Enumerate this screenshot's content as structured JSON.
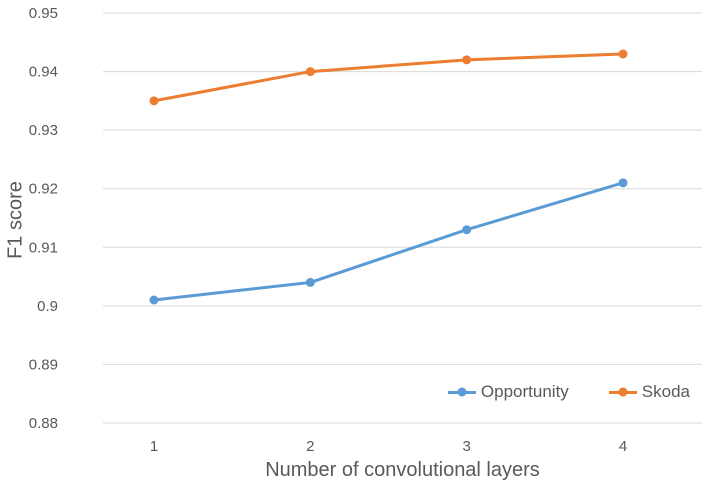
{
  "chart_data": {
    "type": "line",
    "title": "",
    "xlabel": "Number of convolutional layers",
    "ylabel": "F1 score",
    "x": [
      1,
      2,
      3,
      4
    ],
    "xtick_labels": [
      "1",
      "2",
      "3",
      "4"
    ],
    "yticks": [
      0.95,
      0.94,
      0.93,
      0.92,
      0.91,
      0.9,
      0.89,
      0.88
    ],
    "ytick_labels": [
      "0.95",
      "0.94",
      "0.93",
      "0.92",
      "0.91",
      "0.9",
      "0.89",
      "0.88"
    ],
    "ylim": [
      0.88,
      0.95
    ],
    "grid": "horizontal-only",
    "legend_position": "inside-bottom-right",
    "series": [
      {
        "name": "Opportunity",
        "color": "#5B9BD5",
        "values": [
          0.901,
          0.904,
          0.913,
          0.921
        ]
      },
      {
        "name": "Skoda",
        "color": "#ED7D31",
        "values": [
          0.935,
          0.94,
          0.942,
          0.943
        ]
      }
    ],
    "colors": {
      "gridline": "#D9D9D9",
      "text": "#595959",
      "background": "#FFFFFF"
    }
  }
}
